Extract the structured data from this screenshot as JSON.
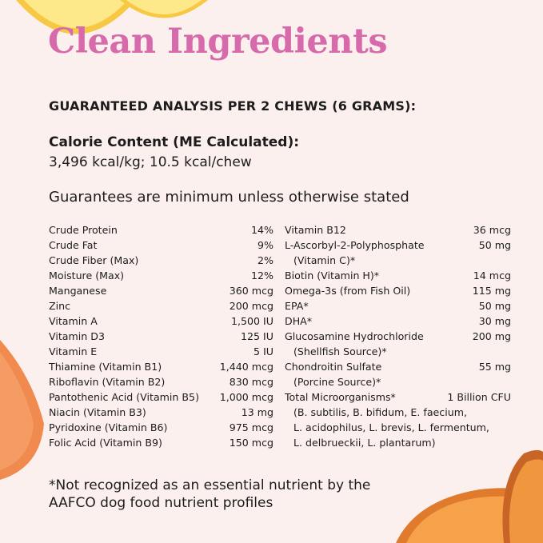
{
  "title": "Clean Ingredients",
  "analysis_heading": "GUARANTEED ANALYSIS PER 2 CHEWS (6 GRAMS):",
  "calorie_label": "Calorie Content (ME Calculated):",
  "calorie_value": "3,496 kcal/kg; 10.5 kcal/chew",
  "guarantees_note": "Guarantees are minimum unless otherwise stated",
  "left_items": [
    {
      "name": "Crude Protein",
      "value": "14%"
    },
    {
      "name": "Crude Fat",
      "value": "9%"
    },
    {
      "name": "Crude Fiber (Max)",
      "value": "2%"
    },
    {
      "name": "Moisture (Max)",
      "value": "12%"
    },
    {
      "name": "Manganese",
      "value": "360 mcg"
    },
    {
      "name": "Zinc",
      "value": "200 mcg"
    },
    {
      "name": "Vitamin A",
      "value": "1,500 IU"
    },
    {
      "name": "Vitamin D3",
      "value": "125 IU"
    },
    {
      "name": "Vitamin E",
      "value": "5 IU"
    },
    {
      "name": "Thiamine (Vitamin B1)",
      "value": "1,440 mcg"
    },
    {
      "name": "Riboflavin (Vitamin B2)",
      "value": "830 mcg"
    },
    {
      "name": "Pantothenic Acid (Vitamin B5)",
      "value": "1,000 mcg"
    },
    {
      "name": "Niacin (Vitamin B3)",
      "value": "13 mg"
    },
    {
      "name": "Pyridoxine (Vitamin B6)",
      "value": "975 mcg"
    },
    {
      "name": "Folic Acid (Vitamin B9)",
      "value": "150 mcg"
    }
  ],
  "right_items": [
    {
      "name": "Vitamin B12",
      "value": "36 mcg"
    },
    {
      "name": "L-Ascorbyl-2-Polyphosphate",
      "value": "50 mg",
      "sub": [
        "(Vitamin C)*"
      ]
    },
    {
      "name": "Biotin (Vitamin H)*",
      "value": "14 mcg"
    },
    {
      "name": "Omega-3s (from Fish Oil)",
      "value": "115 mg"
    },
    {
      "name": "EPA*",
      "value": "50 mg"
    },
    {
      "name": "DHA*",
      "value": "30 mg"
    },
    {
      "name": "Glucosamine Hydrochloride",
      "value": "200 mg",
      "sub": [
        "(Shellfish Source)*"
      ]
    },
    {
      "name": "Chondroitin Sulfate",
      "value": "55 mg",
      "sub": [
        "(Porcine Source)*"
      ]
    },
    {
      "name": "Total Microorganisms*",
      "value": "1 Billion CFU",
      "sub": [
        "(B. subtilis, B. bifidum, E. faecium,",
        "L. acidophilus, L. brevis, L. fermentum,",
        "L. delbrueckii, L. plantarum)"
      ]
    }
  ],
  "footnote_lines": [
    "*Not recognized as an essential nutrient by the",
    "AAFCO dog food nutrient profiles"
  ],
  "colors": {
    "title": "#d66aab",
    "background": "#fcf0ee"
  }
}
